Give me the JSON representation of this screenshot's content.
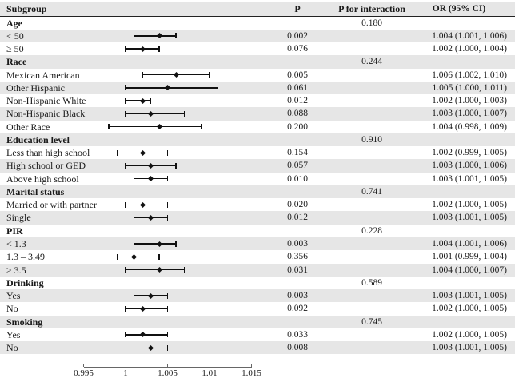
{
  "header": {
    "subgroup": "Subgroup",
    "p": "P",
    "p_interaction": "P for interaction",
    "or_ci": "OR (95% CI)"
  },
  "colors": {
    "row_shade": "#e6e6e6",
    "marker": "#111111",
    "text": "#1a1a1a",
    "table_border": "#222222",
    "axis_line": "#666666"
  },
  "chart_data": {
    "type": "forest",
    "columns": [
      "Subgroup",
      "P",
      "P for interaction",
      "OR (95% CI)"
    ],
    "x_axis": {
      "range": [
        0.995,
        1.015
      ],
      "ticks": [
        0.995,
        1,
        1.005,
        1.01,
        1.015
      ],
      "tick_labels": [
        "0.995",
        "1",
        "1.005",
        "1.01",
        "1.015"
      ],
      "reference_line": 1
    },
    "rows": [
      {
        "label": "Age",
        "group": true,
        "p_interaction": "0.180"
      },
      {
        "label": "< 50",
        "p": "0.002",
        "or_ci": "1.004 (1.001, 1.006)",
        "or": 1.004,
        "lo": 1.001,
        "hi": 1.006
      },
      {
        "label": "≥ 50",
        "p": "0.076",
        "or_ci": "1.002 (1.000, 1.004)",
        "or": 1.002,
        "lo": 1.0,
        "hi": 1.004
      },
      {
        "label": "Race",
        "group": true,
        "p_interaction": "0.244"
      },
      {
        "label": "Mexican American",
        "p": "0.005",
        "or_ci": "1.006 (1.002, 1.010)",
        "or": 1.006,
        "lo": 1.002,
        "hi": 1.01
      },
      {
        "label": "Other Hispanic",
        "p": "0.061",
        "or_ci": "1.005 (1.000, 1.011)",
        "or": 1.005,
        "lo": 1.0,
        "hi": 1.011
      },
      {
        "label": "Non-Hispanic White",
        "p": "0.012",
        "or_ci": "1.002 (1.000, 1.003)",
        "or": 1.002,
        "lo": 1.0,
        "hi": 1.003
      },
      {
        "label": "Non-Hispanic Black",
        "p": "0.088",
        "or_ci": "1.003 (1.000, 1.007)",
        "or": 1.003,
        "lo": 1.0,
        "hi": 1.007
      },
      {
        "label": "Other Race",
        "p": "0.200",
        "or_ci": "1.004 (0.998, 1.009)",
        "or": 1.004,
        "lo": 0.998,
        "hi": 1.009
      },
      {
        "label": "Education level",
        "group": true,
        "p_interaction": "0.910"
      },
      {
        "label": "Less than high school",
        "p": "0.154",
        "or_ci": "1.002 (0.999, 1.005)",
        "or": 1.002,
        "lo": 0.999,
        "hi": 1.005
      },
      {
        "label": "High school or GED",
        "p": "0.057",
        "or_ci": "1.003 (1.000, 1.006)",
        "or": 1.003,
        "lo": 1.0,
        "hi": 1.006
      },
      {
        "label": "Above high school",
        "p": "0.010",
        "or_ci": "1.003 (1.001, 1.005)",
        "or": 1.003,
        "lo": 1.001,
        "hi": 1.005
      },
      {
        "label": "Marital status",
        "group": true,
        "p_interaction": "0.741"
      },
      {
        "label": "Married or with partner",
        "p": "0.020",
        "or_ci": "1.002 (1.000, 1.005)",
        "or": 1.002,
        "lo": 1.0,
        "hi": 1.005
      },
      {
        "label": "Single",
        "p": "0.012",
        "or_ci": "1.003 (1.001, 1.005)",
        "or": 1.003,
        "lo": 1.001,
        "hi": 1.005
      },
      {
        "label": "PIR",
        "group": true,
        "p_interaction": "0.228"
      },
      {
        "label": "< 1.3",
        "p": "0.003",
        "or_ci": "1.004 (1.001, 1.006)",
        "or": 1.004,
        "lo": 1.001,
        "hi": 1.006
      },
      {
        "label": "1.3 – 3.49",
        "p": "0.356",
        "or_ci": "1.001 (0.999, 1.004)",
        "or": 1.001,
        "lo": 0.999,
        "hi": 1.004
      },
      {
        "label": "≥ 3.5",
        "p": "0.031",
        "or_ci": "1.004 (1.000, 1.007)",
        "or": 1.004,
        "lo": 1.0,
        "hi": 1.007
      },
      {
        "label": "Drinking",
        "group": true,
        "p_interaction": "0.589"
      },
      {
        "label": "Yes",
        "p": "0.003",
        "or_ci": "1.003 (1.001, 1.005)",
        "or": 1.003,
        "lo": 1.001,
        "hi": 1.005
      },
      {
        "label": "No",
        "p": "0.092",
        "or_ci": "1.002 (1.000, 1.005)",
        "or": 1.002,
        "lo": 1.0,
        "hi": 1.005
      },
      {
        "label": "Smoking",
        "group": true,
        "p_interaction": "0.745"
      },
      {
        "label": "Yes",
        "p": "0.033",
        "or_ci": "1.002 (1.000, 1.005)",
        "or": 1.002,
        "lo": 1.0,
        "hi": 1.005
      },
      {
        "label": "No",
        "p": "0.008",
        "or_ci": "1.003 (1.001, 1.005)",
        "or": 1.003,
        "lo": 1.001,
        "hi": 1.005
      }
    ]
  }
}
